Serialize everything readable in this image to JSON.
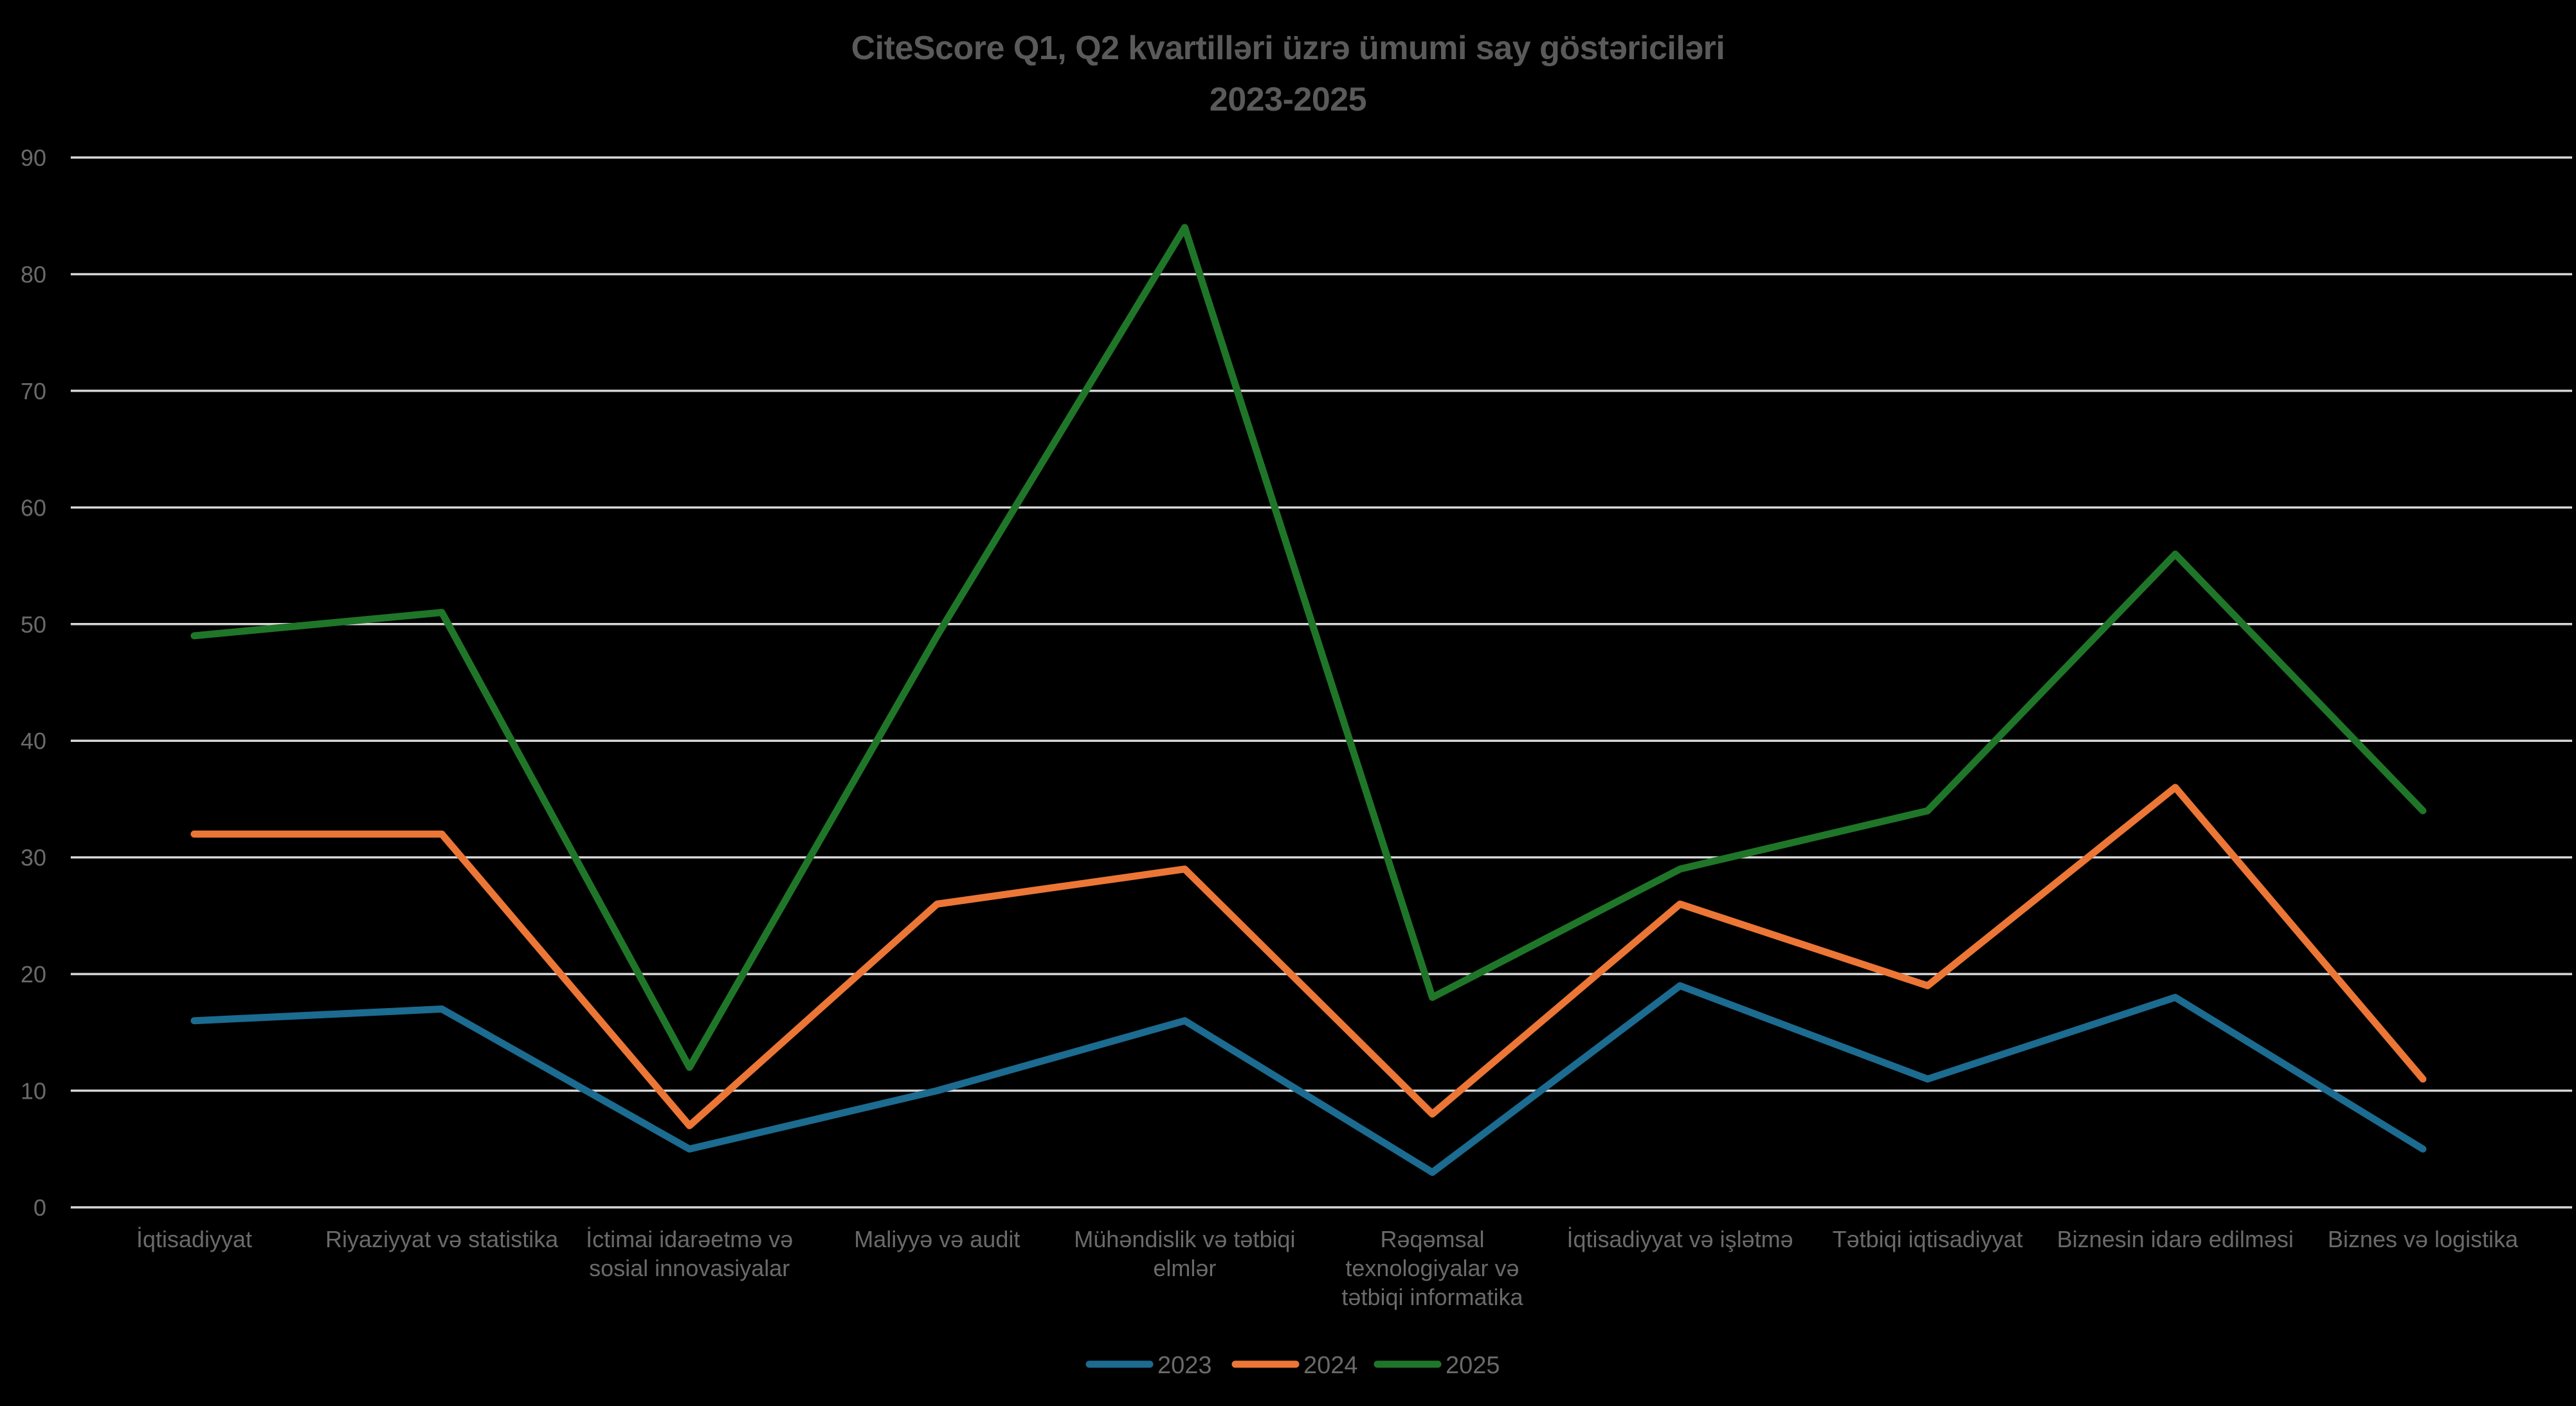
{
  "title": {
    "line1": "CiteScore Q1, Q2 kvartilləri üzrə ümumi say göstəriciləri",
    "line2": "2023-2025"
  },
  "chart_data": {
    "type": "line",
    "title": "CiteScore Q1, Q2 kvartilləri üzrə ümumi say göstəriciləri",
    "subtitle": "2023-2025",
    "categories": [
      "İqtisadiyyat",
      "Riyaziyyat və statistika",
      "İctimai idarəetmə və sosial innovasiyalar",
      "Maliyyə və audit",
      "Mühəndislik və tətbiqi elmlər",
      "Rəqəmsal texnologiyalar və tətbiqi informatika",
      "İqtisadiyyat və işlətmə",
      "Tətbiqi iqtisadiyyat",
      "Biznesin idarə edilməsi",
      "Biznes və logistika"
    ],
    "category_label_lines": [
      [
        "İqtisadiyyat"
      ],
      [
        "Riyaziyyat və statistika"
      ],
      [
        "İctimai idarəetmə və",
        "sosial innovasiyalar"
      ],
      [
        "Maliyyə və audit"
      ],
      [
        "Mühəndislik və tətbiqi",
        "elmlər"
      ],
      [
        "Rəqəmsal",
        "texnologiyalar və",
        "tətbiqi informatika"
      ],
      [
        "İqtisadiyyat və işlətmə"
      ],
      [
        "Tətbiqi iqtisadiyyat"
      ],
      [
        "Biznesin idarə edilməsi"
      ],
      [
        "Biznes və logistika"
      ]
    ],
    "series": [
      {
        "name": "2023",
        "color": "#1C6B90",
        "values": [
          16,
          17,
          5,
          10,
          16,
          3,
          19,
          11,
          18,
          5
        ]
      },
      {
        "name": "2024",
        "color": "#EC7636",
        "values": [
          32,
          32,
          7,
          26,
          29,
          8,
          26,
          19,
          36,
          11
        ]
      },
      {
        "name": "2025",
        "color": "#1F7628",
        "values": [
          49,
          51,
          12,
          49,
          84,
          18,
          29,
          34,
          56,
          34
        ]
      }
    ],
    "xlabel": "",
    "ylabel": "",
    "ylim": [
      0,
      90
    ],
    "ytick_step": 10,
    "ytick_labels": [
      "0",
      "10",
      "20",
      "30",
      "40",
      "50",
      "60",
      "70",
      "80",
      "90"
    ],
    "grid": true,
    "legend_position": "bottom"
  },
  "colors": {
    "background": "#000000",
    "gridline": "#D6D6D6",
    "axis_text": "#6A6A6A",
    "title_text": "#5A5A5A"
  }
}
